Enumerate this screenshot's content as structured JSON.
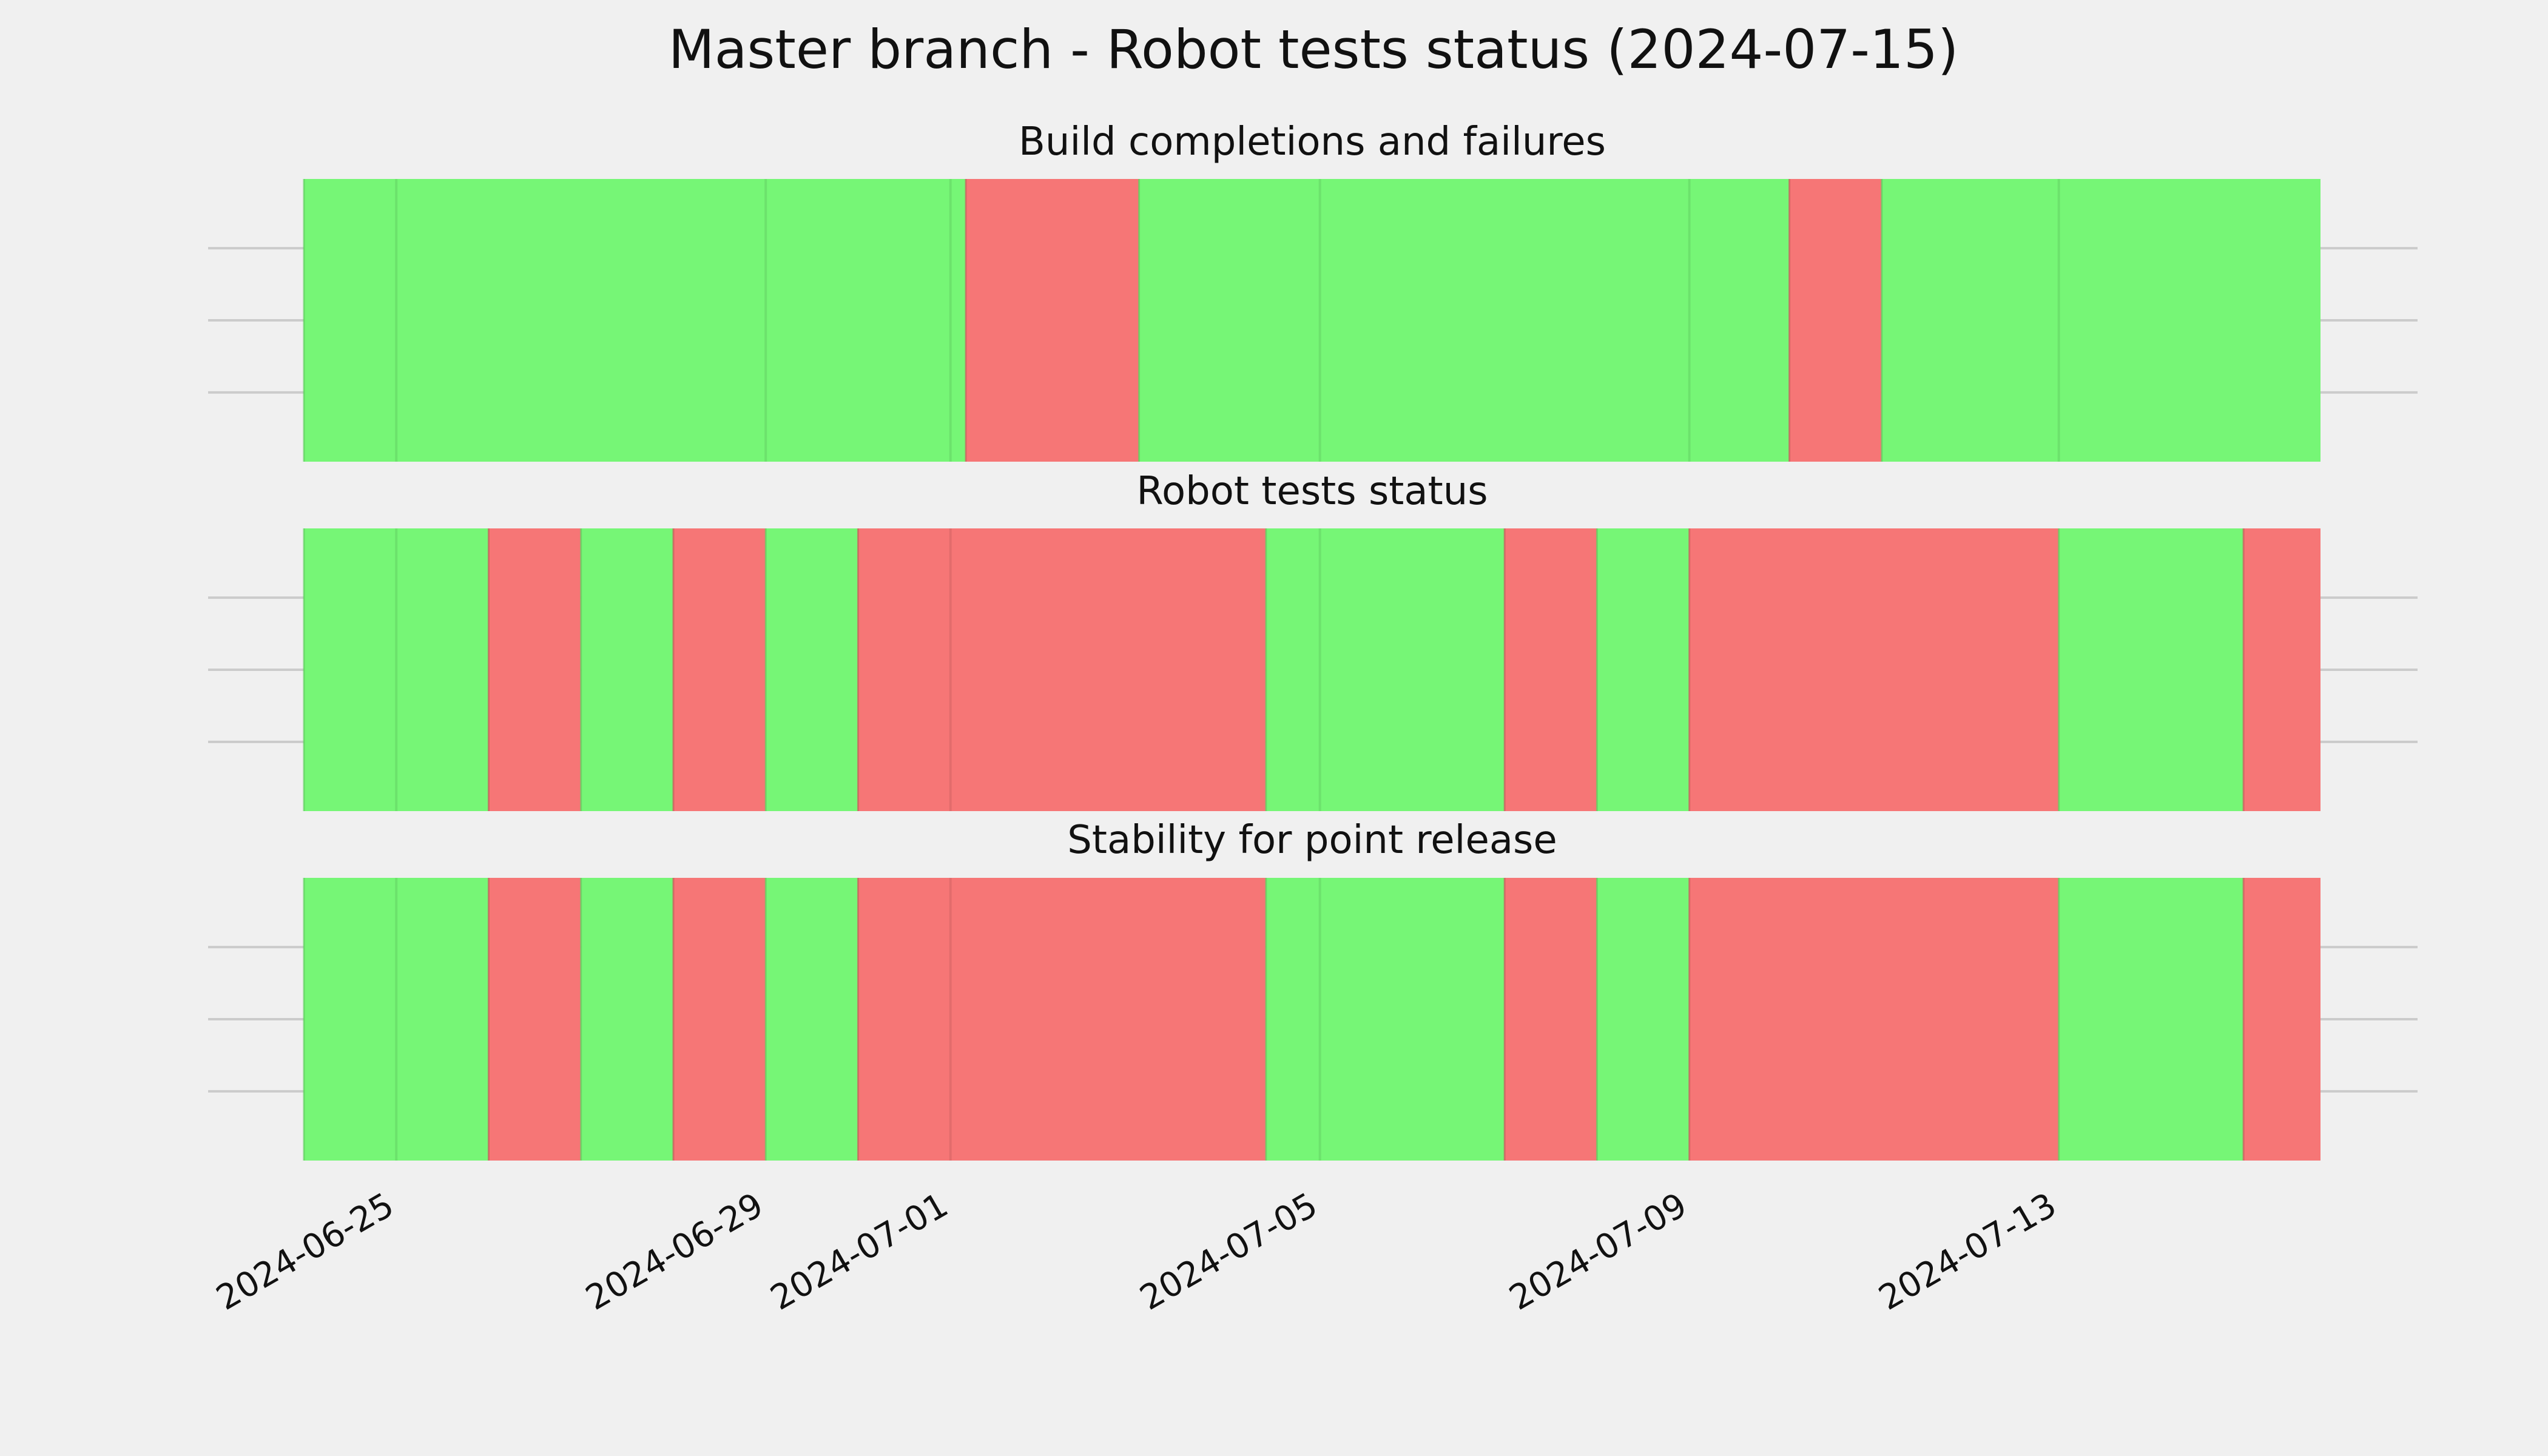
{
  "figure": {
    "title": "Master branch - Robot tests status (2024-07-15)"
  },
  "colors": {
    "background": "#f0f0f0",
    "success": "#76f676",
    "failure": "#f67676",
    "separator": "#5fcf5f",
    "failure_edge": "#c85c5c",
    "grid": "#cbcbcb"
  },
  "chart_data": [
    {
      "type": "timeline",
      "title": "Build completions and failures",
      "grid": true,
      "x_axis": "date",
      "xlim": [
        "2024-06-24",
        "2024-07-15T20:00"
      ],
      "segments": [
        {
          "start": "2024-06-24",
          "end": "2024-07-01T04:00",
          "status": "success"
        },
        {
          "start": "2024-07-01T04:00",
          "end": "2024-07-03T01:00",
          "status": "failure"
        },
        {
          "start": "2024-07-03T01:00",
          "end": "2024-07-10T02:00",
          "status": "success"
        },
        {
          "start": "2024-07-10T02:00",
          "end": "2024-07-11T02:00",
          "status": "failure"
        },
        {
          "start": "2024-07-11T02:00",
          "end": "2024-07-15T20:00",
          "status": "success"
        }
      ],
      "separators": [
        "2024-06-25",
        "2024-06-29",
        "2024-07-01",
        "2024-07-05",
        "2024-07-09",
        "2024-07-13"
      ]
    },
    {
      "type": "timeline",
      "title": "Robot tests status",
      "grid": true,
      "x_axis": "date",
      "xlim": [
        "2024-06-24",
        "2024-07-15T20:00"
      ],
      "segments": [
        {
          "start": "2024-06-24",
          "end": "2024-06-26",
          "status": "success"
        },
        {
          "start": "2024-06-26",
          "end": "2024-06-27",
          "status": "failure"
        },
        {
          "start": "2024-06-27",
          "end": "2024-06-28",
          "status": "success"
        },
        {
          "start": "2024-06-28",
          "end": "2024-06-29",
          "status": "failure"
        },
        {
          "start": "2024-06-29",
          "end": "2024-06-30",
          "status": "success"
        },
        {
          "start": "2024-06-30",
          "end": "2024-07-04T10:00",
          "status": "failure"
        },
        {
          "start": "2024-07-04T10:00",
          "end": "2024-07-07",
          "status": "success"
        },
        {
          "start": "2024-07-07",
          "end": "2024-07-08",
          "status": "failure"
        },
        {
          "start": "2024-07-08",
          "end": "2024-07-09",
          "status": "success"
        },
        {
          "start": "2024-07-09",
          "end": "2024-07-13",
          "status": "failure"
        },
        {
          "start": "2024-07-13",
          "end": "2024-07-15",
          "status": "success"
        },
        {
          "start": "2024-07-15",
          "end": "2024-07-15T20:00",
          "status": "failure"
        }
      ],
      "separators": [
        "2024-06-25",
        "2024-07-01",
        "2024-07-05"
      ]
    },
    {
      "type": "timeline",
      "title": "Stability for point release",
      "grid": true,
      "x_axis": "date",
      "xlim": [
        "2024-06-24",
        "2024-07-15T20:00"
      ],
      "x_tick_labels": [
        "2024-06-25",
        "2024-06-29",
        "2024-07-01",
        "2024-07-05",
        "2024-07-09",
        "2024-07-13"
      ],
      "segments": [
        {
          "start": "2024-06-24",
          "end": "2024-06-26",
          "status": "success"
        },
        {
          "start": "2024-06-26",
          "end": "2024-06-27",
          "status": "failure"
        },
        {
          "start": "2024-06-27",
          "end": "2024-06-28",
          "status": "success"
        },
        {
          "start": "2024-06-28",
          "end": "2024-06-29",
          "status": "failure"
        },
        {
          "start": "2024-06-29",
          "end": "2024-06-30",
          "status": "success"
        },
        {
          "start": "2024-06-30",
          "end": "2024-07-04T10:00",
          "status": "failure"
        },
        {
          "start": "2024-07-04T10:00",
          "end": "2024-07-07",
          "status": "success"
        },
        {
          "start": "2024-07-07",
          "end": "2024-07-08",
          "status": "failure"
        },
        {
          "start": "2024-07-08",
          "end": "2024-07-09",
          "status": "success"
        },
        {
          "start": "2024-07-09",
          "end": "2024-07-13",
          "status": "failure"
        },
        {
          "start": "2024-07-13",
          "end": "2024-07-15",
          "status": "success"
        },
        {
          "start": "2024-07-15",
          "end": "2024-07-15T20:00",
          "status": "failure"
        }
      ],
      "separators": [
        "2024-06-25",
        "2024-07-01",
        "2024-07-05"
      ]
    }
  ]
}
